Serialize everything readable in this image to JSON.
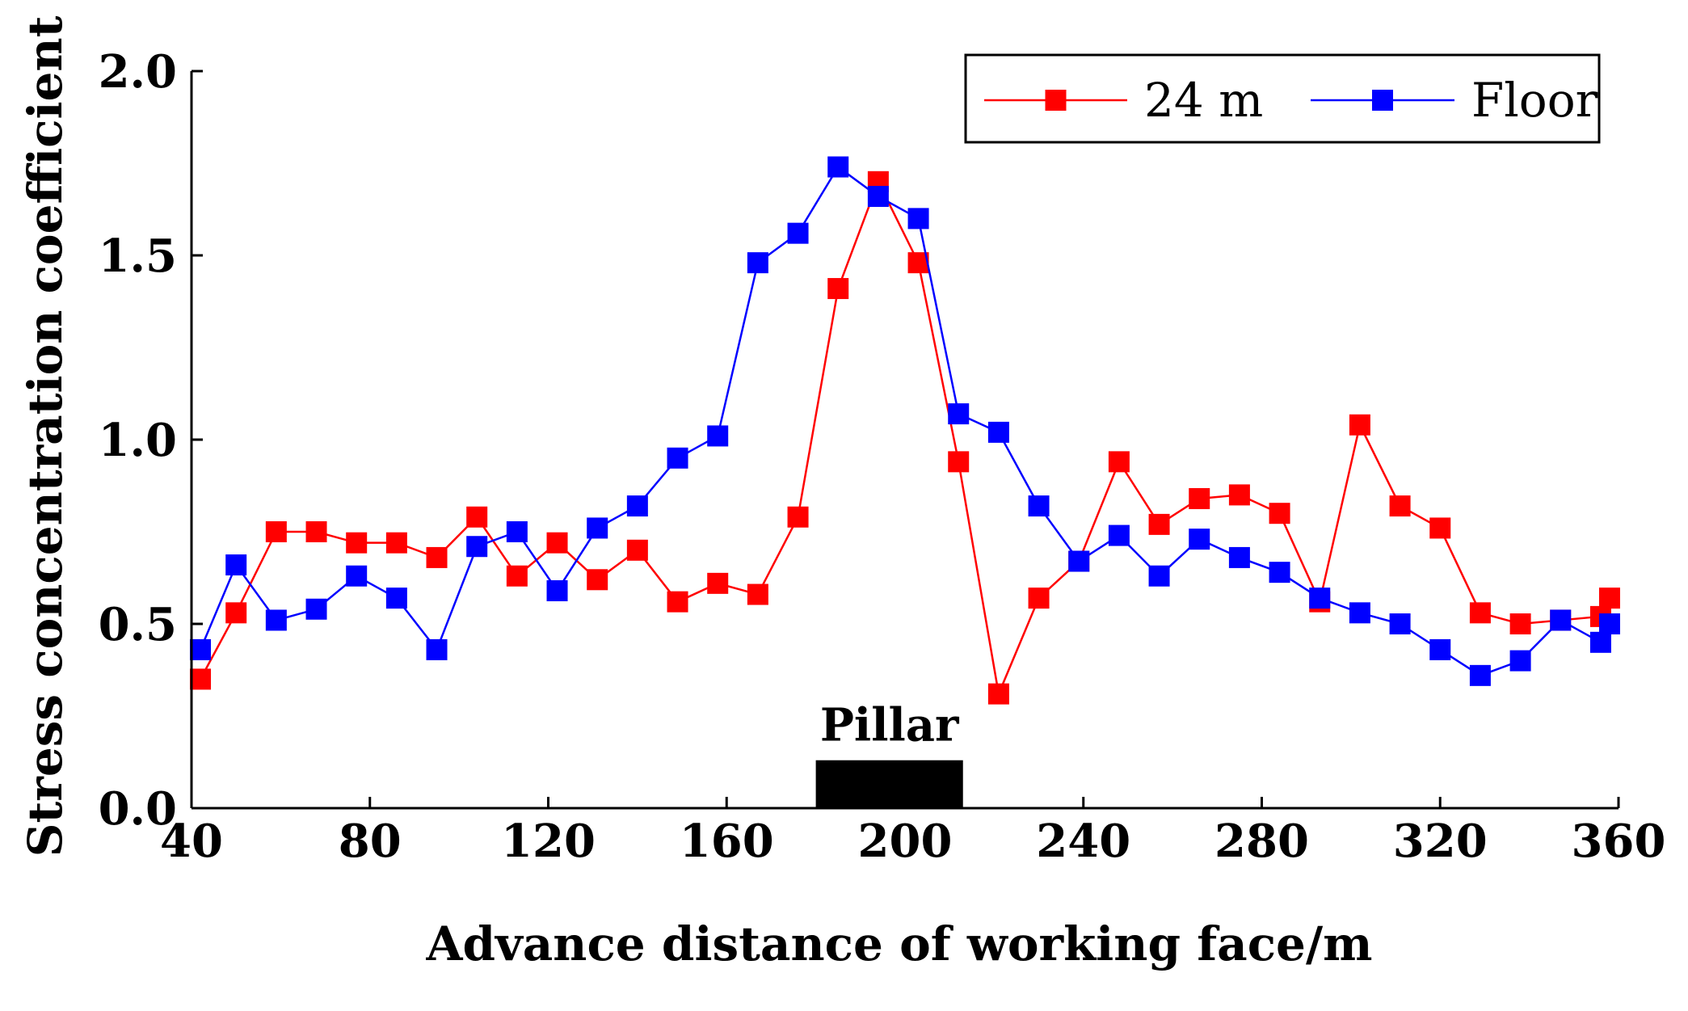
{
  "chart_data": {
    "type": "line",
    "title": "",
    "xlabel": "Advance distance of working face/m",
    "ylabel": "Stress concentration coefficient",
    "xlim": [
      40,
      360
    ],
    "ylim": [
      0.0,
      2.0
    ],
    "xticks": [
      40,
      80,
      120,
      160,
      200,
      240,
      280,
      320,
      360
    ],
    "yticks": [
      0.0,
      0.5,
      1.0,
      1.5,
      2.0
    ],
    "xtick_labels": [
      "40",
      "80",
      "120",
      "160",
      "200",
      "240",
      "280",
      "320",
      "360"
    ],
    "ytick_labels": [
      "0.0",
      "0.5",
      "1.0",
      "1.5",
      "2.0"
    ],
    "grid": false,
    "legend_position": "top-right",
    "series": [
      {
        "name": "24 m",
        "color": "#ff0000",
        "marker": "square",
        "x": [
          42,
          50,
          59,
          68,
          77,
          86,
          95,
          104,
          113,
          122,
          131,
          140,
          149,
          158,
          167,
          176,
          185,
          194,
          203,
          212,
          221,
          230,
          239,
          248,
          257,
          266,
          275,
          284,
          293,
          302,
          311,
          320,
          329,
          338,
          347,
          356,
          358
        ],
        "y": [
          0.35,
          0.53,
          0.75,
          0.75,
          0.72,
          0.72,
          0.68,
          0.79,
          0.63,
          0.72,
          0.62,
          0.7,
          0.56,
          0.61,
          0.58,
          0.79,
          1.41,
          1.7,
          1.48,
          0.94,
          0.31,
          0.57,
          0.67,
          0.94,
          0.77,
          0.84,
          0.85,
          0.8,
          0.56,
          1.04,
          0.82,
          0.76,
          0.53,
          0.5,
          0.51,
          0.52,
          0.57
        ]
      },
      {
        "name": "Floor",
        "color": "#0000ff",
        "marker": "square",
        "x": [
          42,
          50,
          59,
          68,
          77,
          86,
          95,
          104,
          113,
          122,
          131,
          140,
          149,
          158,
          167,
          176,
          185,
          194,
          203,
          212,
          221,
          230,
          239,
          248,
          257,
          266,
          275,
          284,
          293,
          302,
          311,
          320,
          329,
          338,
          347,
          356,
          358
        ],
        "y": [
          0.43,
          0.66,
          0.51,
          0.54,
          0.63,
          0.57,
          0.43,
          0.71,
          0.75,
          0.59,
          0.76,
          0.82,
          0.95,
          1.01,
          1.48,
          1.56,
          1.74,
          1.66,
          1.6,
          1.07,
          1.02,
          0.82,
          0.67,
          0.74,
          0.63,
          0.73,
          0.68,
          0.64,
          0.57,
          0.53,
          0.5,
          0.43,
          0.36,
          0.4,
          0.51,
          0.45,
          0.5
        ]
      }
    ],
    "annotations": [
      {
        "label": "Pillar",
        "type": "bar-region",
        "x_start": 180,
        "x_end": 213,
        "y_start": 0.0,
        "y_end": 0.13,
        "color": "#000000"
      }
    ]
  }
}
